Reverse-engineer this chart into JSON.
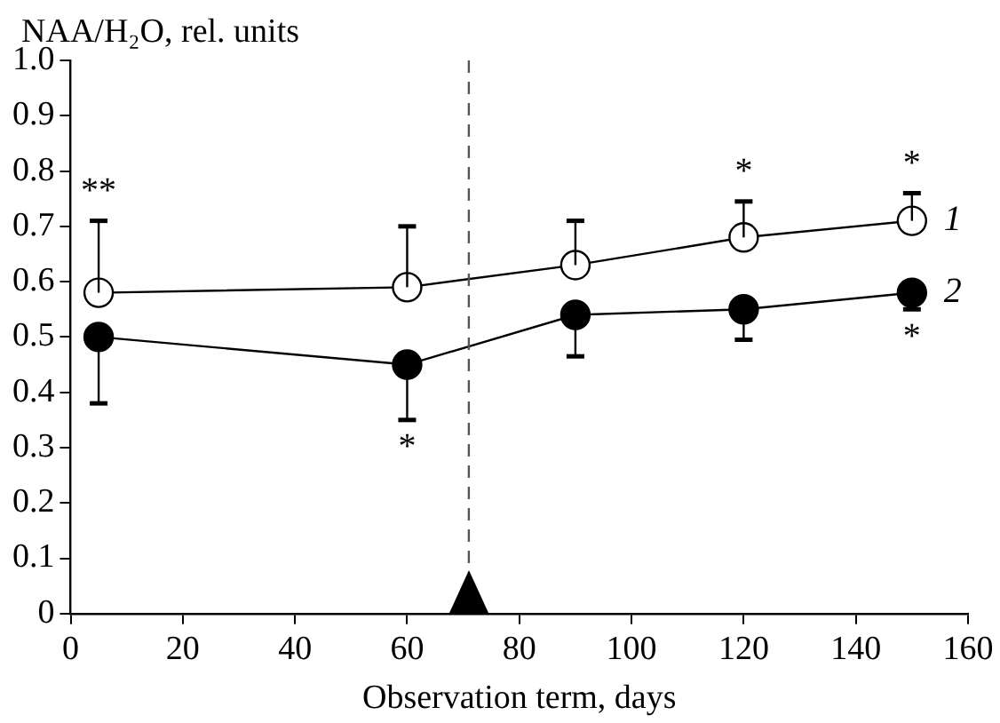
{
  "chart_data": {
    "type": "line",
    "ylabel": "NAA/H₂O, rel. units",
    "xlabel": "Observation term, days",
    "xlim": [
      0,
      160
    ],
    "xticks": [
      0,
      20,
      40,
      60,
      80,
      100,
      120,
      140,
      160
    ],
    "ylim": [
      0,
      1
    ],
    "yticks": [
      0,
      {
        "value": 0.1,
        "label": "0.1"
      },
      {
        "value": 0.2,
        "label": "0.2"
      },
      {
        "value": 0.3,
        "label": "0.3"
      },
      {
        "value": 0.4,
        "label": "0.4"
      },
      {
        "value": 0.5,
        "label": "0.5"
      },
      {
        "value": 0.6,
        "label": "0.6"
      },
      {
        "value": 0.7,
        "label": "0.7"
      },
      {
        "value": 0.8,
        "label": "0.8"
      },
      {
        "value": 0.9,
        "label": "0.9"
      },
      {
        "value": 1,
        "label": "1.0"
      }
    ],
    "x": [
      5,
      60,
      90,
      120,
      150
    ],
    "series": [
      {
        "name": "1",
        "color": "#000000",
        "values": [
          0.58,
          0.59,
          0.63,
          0.68,
          0.71
        ],
        "errors": [
          [
            0.58,
            0.71
          ],
          [
            0.59,
            0.7
          ],
          [
            0.63,
            0.71
          ],
          [
            0.68,
            0.745
          ],
          [
            0.71,
            0.76
          ]
        ]
      },
      {
        "name": "2",
        "color": "#000000",
        "values": [
          0.5,
          0.45,
          0.54,
          0.55,
          0.58
        ],
        "errors": [
          [
            0.38,
            0.5
          ],
          [
            0.35,
            0.45
          ],
          [
            0.465,
            0.54
          ],
          [
            0.495,
            0.55
          ],
          [
            0.55,
            0.58
          ]
        ]
      }
    ],
    "ref_lines": [
      {
        "axis": "x",
        "value": 71,
        "line_style": "dashed",
        "color": "#555555"
      }
    ],
    "annotations": [
      {
        "text": "**",
        "x": 5,
        "y": 0.58
      },
      {
        "text": "*",
        "x": 60,
        "y": 0.45
      },
      {
        "text": "*",
        "x": 120,
        "y": 0.68
      },
      {
        "text": "*",
        "x": 150,
        "y": 0.71
      },
      {
        "text": "*",
        "x": 150,
        "y": 0.58
      }
    ],
    "marker": "circle",
    "line_style": "solid",
    "grid": false,
    "legend": false
  }
}
